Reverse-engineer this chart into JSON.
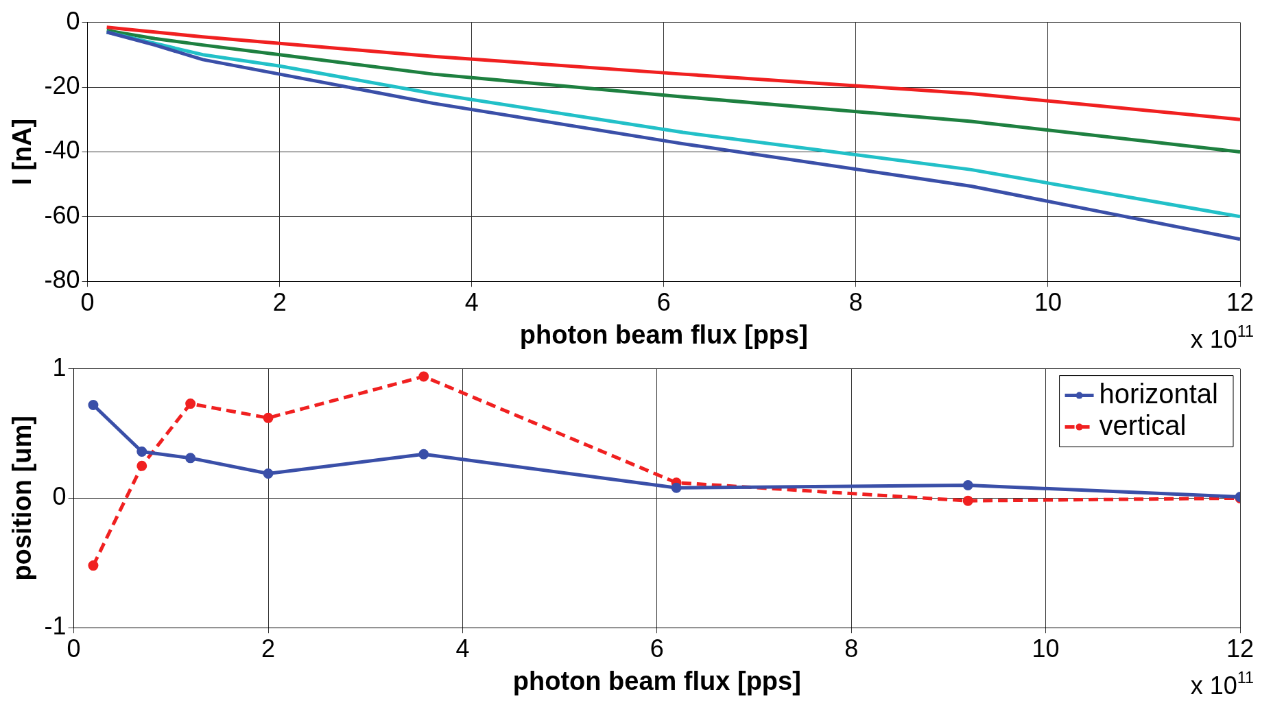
{
  "chart_data": [
    {
      "type": "line",
      "xlabel": "photon beam flux [pps]",
      "ylabel": "I [nA]",
      "x": [
        0.2,
        0.7,
        1.2,
        2,
        3.6,
        6.2,
        9.2,
        12
      ],
      "series": [
        {
          "color": "#3a4fa8",
          "values": [
            -3,
            -7,
            -11.5,
            -16,
            -25,
            -37.5,
            -50.6,
            -67
          ]
        },
        {
          "color": "#22c0c8",
          "values": [
            -3,
            -6.5,
            -10,
            -13.5,
            -22,
            -34,
            -45.5,
            -60
          ]
        },
        {
          "color": "#1e8040",
          "values": [
            -2.5,
            -5,
            -7,
            -10,
            -16,
            -23,
            -30.6,
            -40
          ]
        },
        {
          "color": "#f02020",
          "values": [
            -1.5,
            -3,
            -4.5,
            -6.5,
            -10.5,
            -16,
            -22,
            -30
          ]
        }
      ],
      "xlim": [
        0,
        12
      ],
      "xticks": [
        0,
        2,
        4,
        6,
        8,
        10,
        12
      ],
      "ylim": [
        -80,
        0
      ],
      "yticks": [
        -80,
        -60,
        -40,
        -20,
        0
      ],
      "grid": true,
      "legend": false,
      "marker": "none",
      "line_style": "solid",
      "annotations": [
        "x 10$^{11}$"
      ]
    },
    {
      "type": "line",
      "xlabel": "photon beam flux [pps]",
      "ylabel": "position [um]",
      "x": [
        0.2,
        0.7,
        1.2,
        2,
        3.6,
        6.2,
        9.2,
        12
      ],
      "series": [
        {
          "name": "horizontal",
          "color": "#3a4fa8",
          "values": [
            0.72,
            0.36,
            0.31,
            0.19,
            0.34,
            0.08,
            0.1,
            0.01
          ],
          "line_style": "solid"
        },
        {
          "name": "vertical",
          "color": "#f02020",
          "values": [
            -0.52,
            0.25,
            0.73,
            0.62,
            0.94,
            0.12,
            -0.02,
            0.0
          ],
          "line_style": "dashed"
        }
      ],
      "xlim": [
        0,
        12
      ],
      "xticks": [
        0,
        2,
        4,
        6,
        8,
        10,
        12
      ],
      "ylim": [
        -1,
        1
      ],
      "yticks": [
        -1,
        0,
        1
      ],
      "grid": true,
      "legend": "top right",
      "marker": "circle",
      "annotations": [
        "x 10$^{11}$"
      ]
    }
  ]
}
